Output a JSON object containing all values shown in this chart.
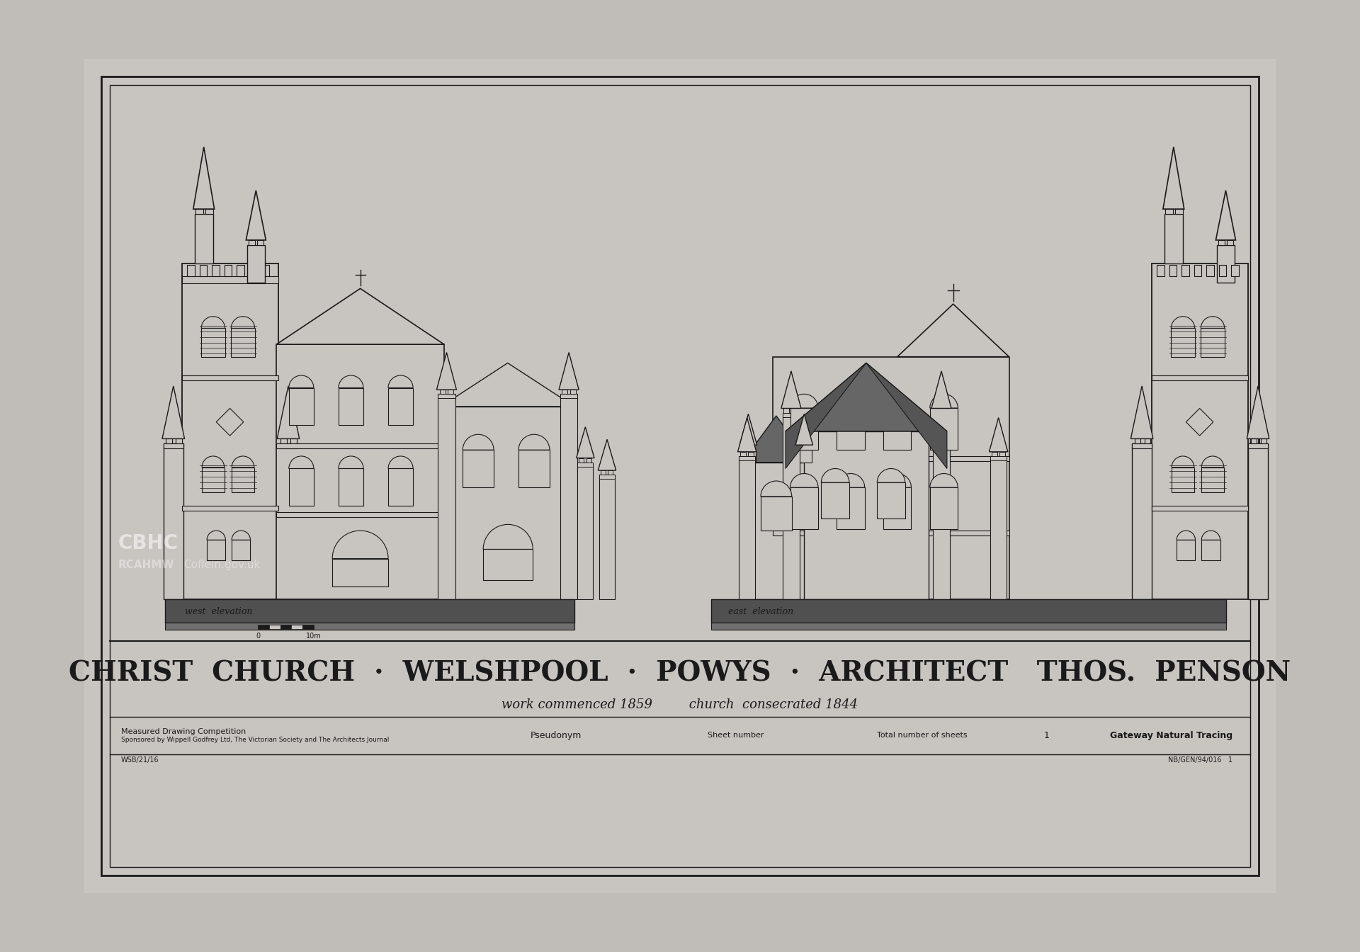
{
  "bg_color": "#c0bcb8",
  "paper_color": "#c8c4c0",
  "line_color": "#1a1a1a",
  "dark_ground": "#505050",
  "medium_gray": "#888888",
  "title_main": "CHRIST  CHURCH  ·  WELSHPOOL  ·  POWYS  ·  ARCHITECT   THOS.  PENSON",
  "subtitle": "work commenced 1859         church  consecrated 1844",
  "label_west": "west  elevation",
  "label_east": "east  elevation",
  "footer_left1": "Measured Drawing Competition",
  "footer_left2": "Sponsored by Wippell Godfrey Ltd, The Victorian Society and The Architects Journal",
  "footer_center": "Pseudonym",
  "footer_sheet": "Sheet number",
  "footer_total": "Total number of sheets",
  "footer_num": "1",
  "footer_right": "Gateway Natural Tracing",
  "ref_bottom_left": "WSB/21/16",
  "ref_bottom_right": "NB/GEN/94/016   1"
}
